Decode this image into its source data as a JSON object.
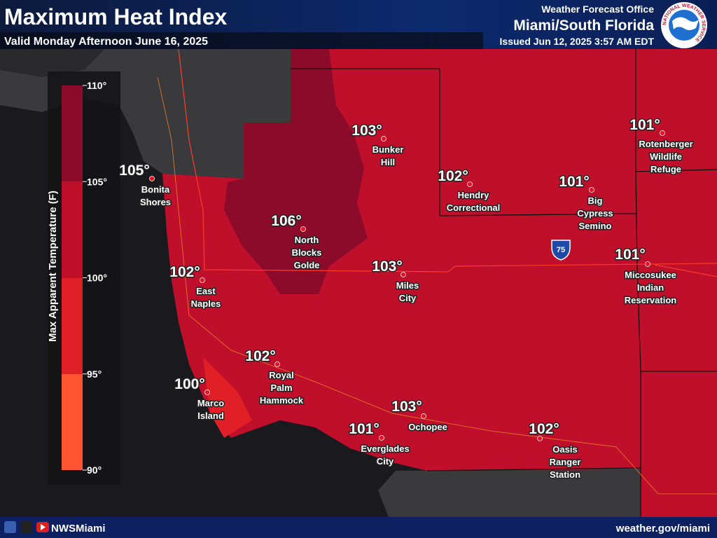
{
  "header": {
    "title": "Maximum Heat Index",
    "valid": "Valid Monday Afternoon June 16, 2025",
    "office_line": "Weather Forecast Office",
    "office": "Miami/South Florida",
    "issued": "Issued Jun 12, 2025 3:57 AM EDT",
    "logo_text": "NATIONAL WEATHER SERVICE"
  },
  "legend": {
    "title": "Max Apparent Temperature (F)",
    "ticks": [
      "110°",
      "105°",
      "100°",
      "95°",
      "90°"
    ]
  },
  "interstate": "75",
  "places": [
    {
      "value": "105°",
      "name": [
        "Bonita",
        "Shores"
      ]
    },
    {
      "value": "106°",
      "name": [
        "North",
        "Blocks",
        "Golde"
      ]
    },
    {
      "value": "103°",
      "name": [
        "Bunker",
        "Hill"
      ]
    },
    {
      "value": "102°",
      "name": [
        "Hendry",
        "Correctional"
      ]
    },
    {
      "value": "101°",
      "name": [
        "Rotenberger",
        "Wildlife",
        "Refuge"
      ]
    },
    {
      "value": "101°",
      "name": [
        "Big",
        "Cypress",
        "Semino"
      ]
    },
    {
      "value": "102°",
      "name": [
        "East",
        "Naples"
      ]
    },
    {
      "value": "103°",
      "name": [
        "Miles",
        "City"
      ]
    },
    {
      "value": "101°",
      "name": [
        "Miccosukee",
        "Indian",
        "Reservation"
      ]
    },
    {
      "value": "102°",
      "name": [
        "Royal",
        "Palm",
        "Hammock"
      ]
    },
    {
      "value": "100°",
      "name": [
        "Marco",
        "Island"
      ]
    },
    {
      "value": "103°",
      "name": [
        "Ochopee"
      ]
    },
    {
      "value": "101°",
      "name": [
        "Everglades",
        "City"
      ]
    },
    {
      "value": "102°",
      "name": [
        "Oasis",
        "Ranger",
        "Station"
      ]
    }
  ],
  "footer": {
    "social": "NWSMiami",
    "url": "weather.gov/miami"
  }
}
